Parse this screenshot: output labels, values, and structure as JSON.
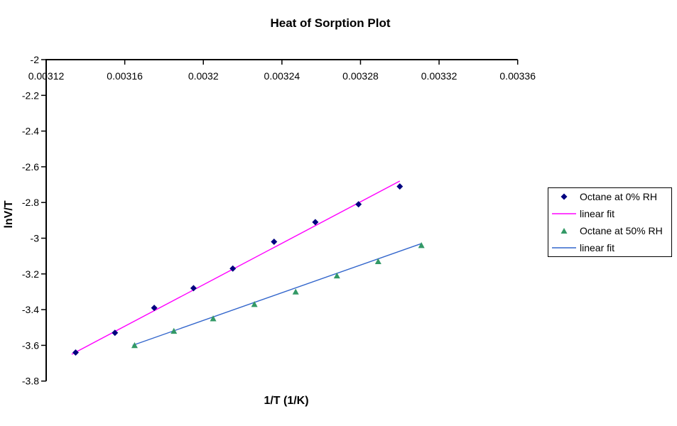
{
  "window": {
    "background": "#FFFFFF"
  },
  "chart": {
    "title": "Heat of Sorption Plot",
    "x_axis_title": "1/T (1/K)",
    "y_axis_title": "lnV/T"
  },
  "legend": {
    "items": [
      {
        "label": "Octane at 0% RH",
        "marker": "diamond",
        "color": "#000080"
      },
      {
        "label": "linear fit",
        "marker": "line",
        "color": "#FF00FF"
      },
      {
        "label": "Octane at 50% RH",
        "marker": "triangle",
        "color": "#339966"
      },
      {
        "label": "linear fit",
        "marker": "line",
        "color": "#3366CC"
      }
    ]
  },
  "chart_data": {
    "type": "scatter",
    "title": "Heat of Sorption Plot",
    "xlabel": "1/T (1/K)",
    "ylabel": "lnV/T",
    "xlim": [
      0.00312,
      0.00336
    ],
    "ylim": [
      -3.8,
      -2
    ],
    "grid": false,
    "legend_position": "right",
    "x_ticks": [
      {
        "value": 0.00312,
        "label": "0.00312"
      },
      {
        "value": 0.00316,
        "label": "0.00316"
      },
      {
        "value": 0.0032,
        "label": "0.0032"
      },
      {
        "value": 0.00324,
        "label": "0.00324"
      },
      {
        "value": 0.00328,
        "label": "0.00328"
      },
      {
        "value": 0.00332,
        "label": "0.00332"
      },
      {
        "value": 0.00336,
        "label": "0.00336"
      }
    ],
    "y_ticks": [
      {
        "value": -2,
        "label": "-2"
      },
      {
        "value": -2.2,
        "label": "-2.2"
      },
      {
        "value": -2.4,
        "label": "-2.4"
      },
      {
        "value": -2.6,
        "label": "-2.6"
      },
      {
        "value": -2.8,
        "label": "-2.8"
      },
      {
        "value": -3,
        "label": "-3"
      },
      {
        "value": -3.2,
        "label": "-3.2"
      },
      {
        "value": -3.4,
        "label": "-3.4"
      },
      {
        "value": -3.6,
        "label": "-3.6"
      },
      {
        "value": -3.8,
        "label": "-3.8"
      }
    ],
    "series": [
      {
        "name": "Octane at 0% RH",
        "kind": "scatter",
        "marker": "diamond",
        "color": "#000080",
        "x": [
          0.003135,
          0.003155,
          0.003175,
          0.003195,
          0.003215,
          0.003236,
          0.003257,
          0.003279,
          0.0033
        ],
        "y": [
          -3.64,
          -3.53,
          -3.39,
          -3.28,
          -3.17,
          -3.02,
          -2.91,
          -2.81,
          -2.71
        ]
      },
      {
        "name": "linear fit",
        "kind": "line",
        "color": "#FF00FF",
        "x": [
          0.003133,
          0.0033
        ],
        "y": [
          -3.65,
          -2.68
        ]
      },
      {
        "name": "Octane at 50% RH",
        "kind": "scatter",
        "marker": "triangle",
        "color": "#339966",
        "x": [
          0.003165,
          0.003185,
          0.003205,
          0.003226,
          0.003247,
          0.003268,
          0.003289,
          0.003311
        ],
        "y": [
          -3.6,
          -3.52,
          -3.45,
          -3.37,
          -3.3,
          -3.21,
          -3.13,
          -3.04
        ]
      },
      {
        "name": "linear fit",
        "kind": "line",
        "color": "#3366CC",
        "x": [
          0.003164,
          0.003311
        ],
        "y": [
          -3.6,
          -3.03
        ]
      }
    ]
  }
}
